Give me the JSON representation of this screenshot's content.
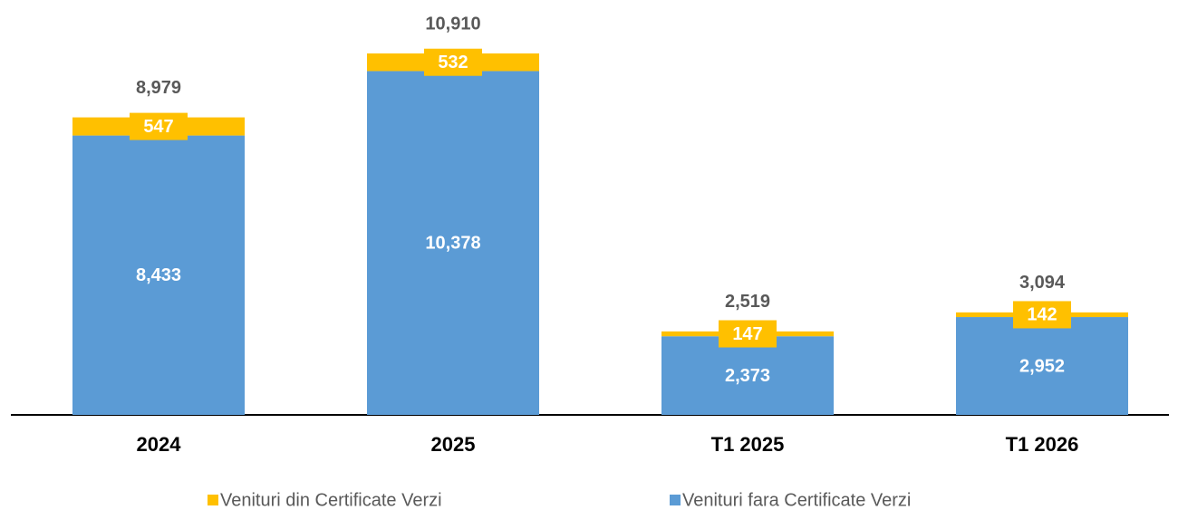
{
  "chart_data": {
    "type": "stacked_bar",
    "categories": [
      "2024",
      "2025",
      "T1 2025",
      "T1 2026"
    ],
    "series": [
      {
        "name": "Venituri fara Certificate Verzi",
        "color": "#5b9bd5",
        "values": [
          8433,
          10378,
          2373,
          2952
        ],
        "value_labels": [
          "8,433",
          "10,378",
          "2,373",
          "2,952"
        ]
      },
      {
        "name": "Venituri din Certificate Verzi",
        "color": "#ffc000",
        "values": [
          547,
          532,
          147,
          142
        ],
        "value_labels": [
          "547",
          "532",
          "147",
          "142"
        ]
      }
    ],
    "totals": [
      8979,
      10910,
      2519,
      3094
    ],
    "total_labels": [
      "8,979",
      "10,910",
      "2,519",
      "3,094"
    ]
  }
}
